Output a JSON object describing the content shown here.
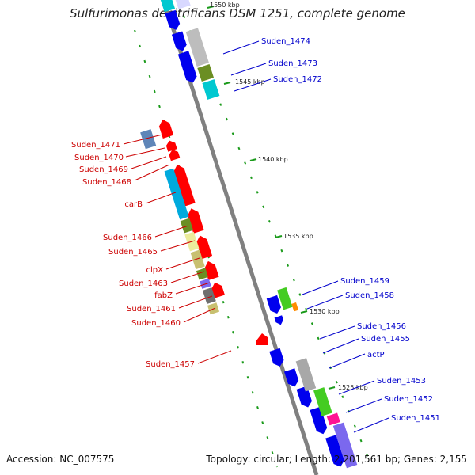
{
  "title": "Sulfurimonas denitrificans DSM 1251, complete genome",
  "accession": "Accession: NC_007575",
  "topology": "Topology: circular; Length: 2,201,561 bp; Genes: 2,155",
  "ticks": [
    "1550 kbp",
    "1545 kbp",
    "1540 kbp",
    "1535 kbp",
    "1530 kbp",
    "1525 kbp"
  ],
  "left_labels": [
    "Suden_1471",
    "Suden_1470",
    "Suden_1469",
    "Suden_1468",
    "carB",
    "Suden_1466",
    "Suden_1465",
    "clpX",
    "Suden_1463",
    "fabZ",
    "Suden_1461",
    "Suden_1460",
    "Suden_1457"
  ],
  "right_labels": [
    "Suden_1474",
    "Suden_1473",
    "Suden_1472",
    "Suden_1459",
    "Suden_1458",
    "Suden_1456",
    "Suden_1455",
    "actP",
    "Suden_1453",
    "Suden_1452",
    "Suden_1451"
  ],
  "colors": {
    "reverse_strand": "#ff0000",
    "forward_strand": "#0000ee",
    "left_label": "#cc0000",
    "right_label": "#0000cc",
    "backbone": "#808080"
  }
}
